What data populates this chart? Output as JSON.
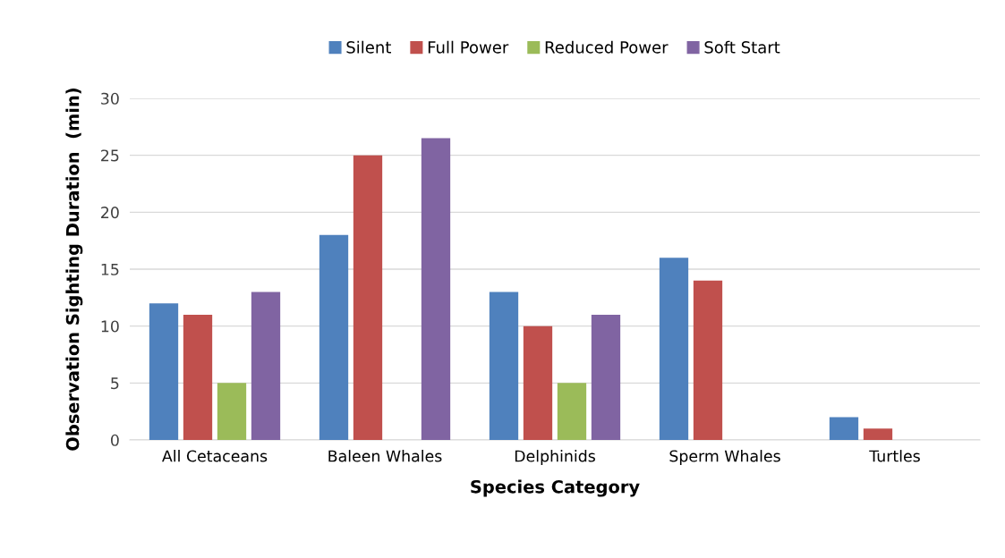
{
  "chart_data": {
    "type": "bar",
    "xlabel": "Species Category",
    "ylabel": "Observation Sighting Duration  (min)",
    "categories": [
      "All Cetaceans",
      "Baleen Whales",
      "Delphinids",
      "Sperm Whales",
      "Turtles"
    ],
    "series": [
      {
        "name": "Silent",
        "color": "#4f81bd",
        "values": [
          12,
          18,
          13,
          16,
          2
        ]
      },
      {
        "name": "Full Power",
        "color": "#c0504d",
        "values": [
          11,
          25,
          10,
          14,
          1
        ]
      },
      {
        "name": "Reduced Power",
        "color": "#9bbb59",
        "values": [
          5,
          null,
          5,
          null,
          null
        ]
      },
      {
        "name": "Soft Start",
        "color": "#8064a2",
        "values": [
          13,
          26.5,
          11,
          null,
          null
        ]
      }
    ],
    "ylim": [
      0,
      30
    ],
    "yticks": [
      0,
      5,
      10,
      15,
      20,
      25,
      30
    ],
    "grid": "y",
    "legend": "top"
  }
}
